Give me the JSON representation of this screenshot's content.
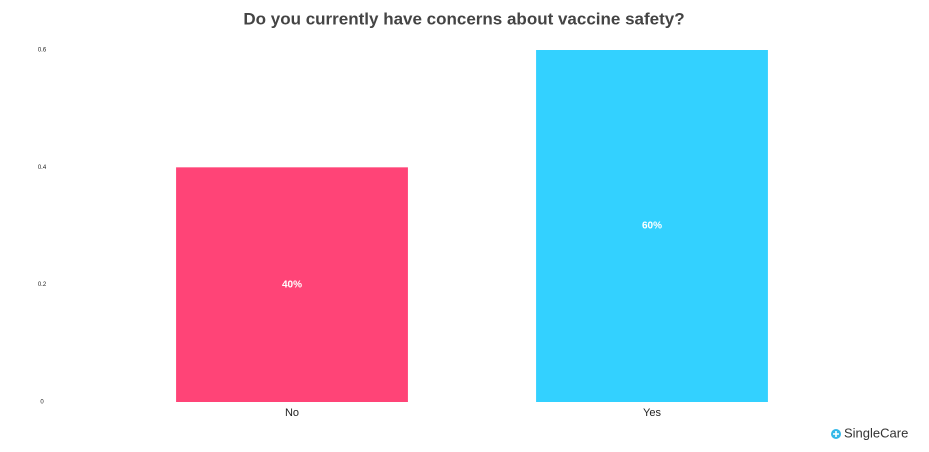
{
  "chart_data": {
    "type": "bar",
    "title": "Do you currently have concerns about vaccine safety?",
    "categories": [
      "No",
      "Yes"
    ],
    "values": [
      0.4,
      0.6
    ],
    "value_labels": [
      "40%",
      "60%"
    ],
    "colors": [
      "#ff4477",
      "#33d1ff"
    ],
    "ylim": [
      0,
      0.6
    ],
    "yticks": [
      0,
      0.2,
      0.4,
      0.6
    ],
    "grid": false
  },
  "brand": "SingleCare"
}
